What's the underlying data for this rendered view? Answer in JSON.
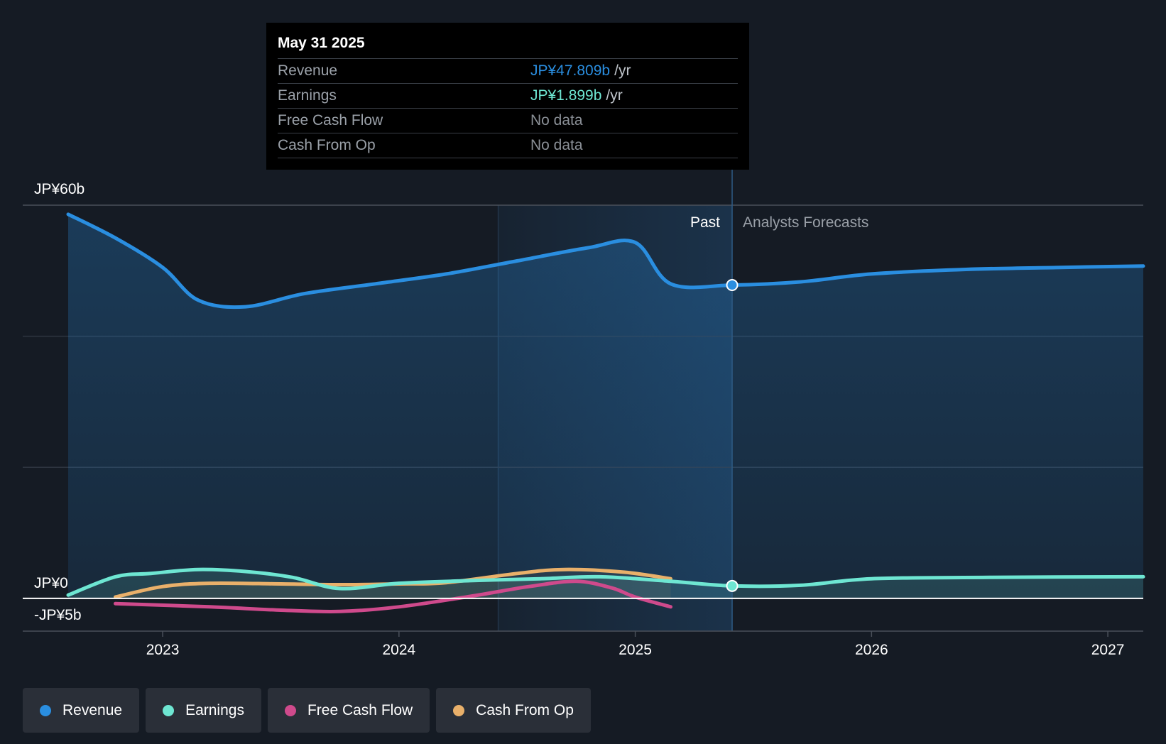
{
  "colors": {
    "background": "#151b24",
    "revenue": "#2a8ee0",
    "earnings": "#6ee6d2",
    "free_cash_flow": "#cf4a8c",
    "cash_from_op": "#e9b06a",
    "past_shade": "#1d3a57",
    "grid": "#3a404a"
  },
  "tooltip": {
    "date": "May 31 2025",
    "rows": [
      {
        "label": "Revenue",
        "value": "JP¥47.809b",
        "unit": "/yr",
        "color": "#2a8ee0"
      },
      {
        "label": "Earnings",
        "value": "JP¥1.899b",
        "unit": "/yr",
        "color": "#6ee6d2"
      },
      {
        "label": "Free Cash Flow",
        "value": "No data",
        "unit": "",
        "color": "#8a8f96"
      },
      {
        "label": "Cash From Op",
        "value": "No data",
        "unit": "",
        "color": "#8a8f96"
      }
    ]
  },
  "legend": [
    {
      "label": "Revenue",
      "color": "#2a8ee0"
    },
    {
      "label": "Earnings",
      "color": "#6ee6d2"
    },
    {
      "label": "Free Cash Flow",
      "color": "#cf4a8c"
    },
    {
      "label": "Cash From Op",
      "color": "#e9b06a"
    }
  ],
  "chart_data": {
    "type": "line",
    "title": "",
    "xlabel": "",
    "ylabel": "",
    "xlim": [
      2022.6,
      2027.15
    ],
    "ylim": [
      -5,
      60
    ],
    "y_tick_labels": [
      {
        "value": 60,
        "label": "JP¥60b"
      },
      {
        "value": 0,
        "label": "JP¥0"
      },
      {
        "value": -5,
        "label": "-JP¥5b"
      }
    ],
    "x_ticks": [
      {
        "value": 2023,
        "label": "2023"
      },
      {
        "value": 2024,
        "label": "2024"
      },
      {
        "value": 2025,
        "label": "2025"
      },
      {
        "value": 2026,
        "label": "2026"
      },
      {
        "value": 2027,
        "label": "2027"
      }
    ],
    "highlight_range": [
      2024.42,
      2025.41
    ],
    "past_forecast_divider": 2025.41,
    "past_label": "Past",
    "forecast_label": "Analysts Forecasts",
    "series": [
      {
        "name": "Revenue",
        "key": "revenue",
        "points": [
          [
            2022.6,
            58.6
          ],
          [
            2022.8,
            55.0
          ],
          [
            2023.0,
            50.5
          ],
          [
            2023.15,
            45.5
          ],
          [
            2023.35,
            44.5
          ],
          [
            2023.6,
            46.5
          ],
          [
            2023.9,
            48.0
          ],
          [
            2024.2,
            49.5
          ],
          [
            2024.5,
            51.5
          ],
          [
            2024.8,
            53.5
          ],
          [
            2025.0,
            54.3
          ],
          [
            2025.15,
            48.0
          ],
          [
            2025.41,
            47.809
          ],
          [
            2025.7,
            48.3
          ],
          [
            2026.0,
            49.5
          ],
          [
            2026.4,
            50.2
          ],
          [
            2026.8,
            50.5
          ],
          [
            2027.15,
            50.7
          ]
        ]
      },
      {
        "name": "Earnings",
        "key": "earnings",
        "points": [
          [
            2022.6,
            0.5
          ],
          [
            2022.8,
            3.3
          ],
          [
            2022.95,
            3.8
          ],
          [
            2023.15,
            4.4
          ],
          [
            2023.35,
            4.1
          ],
          [
            2023.55,
            3.2
          ],
          [
            2023.75,
            1.5
          ],
          [
            2024.0,
            2.3
          ],
          [
            2024.3,
            2.7
          ],
          [
            2024.6,
            3.0
          ],
          [
            2024.85,
            3.3
          ],
          [
            2025.15,
            2.6
          ],
          [
            2025.41,
            1.899
          ],
          [
            2025.7,
            2.0
          ],
          [
            2026.0,
            3.0
          ],
          [
            2026.5,
            3.2
          ],
          [
            2027.15,
            3.3
          ]
        ]
      },
      {
        "name": "Free Cash Flow",
        "key": "free_cash_flow",
        "points": [
          [
            2022.8,
            -0.8
          ],
          [
            2023.2,
            -1.3
          ],
          [
            2023.5,
            -1.8
          ],
          [
            2023.75,
            -2.0
          ],
          [
            2024.0,
            -1.3
          ],
          [
            2024.3,
            0.3
          ],
          [
            2024.55,
            1.8
          ],
          [
            2024.75,
            2.6
          ],
          [
            2024.9,
            1.6
          ],
          [
            2025.0,
            0.2
          ],
          [
            2025.15,
            -1.3
          ]
        ]
      },
      {
        "name": "Cash From Op",
        "key": "cash_from_op",
        "points": [
          [
            2022.8,
            0.2
          ],
          [
            2023.0,
            1.8
          ],
          [
            2023.2,
            2.3
          ],
          [
            2023.5,
            2.2
          ],
          [
            2023.75,
            2.1
          ],
          [
            2024.0,
            2.2
          ],
          [
            2024.2,
            2.4
          ],
          [
            2024.5,
            3.8
          ],
          [
            2024.7,
            4.4
          ],
          [
            2024.95,
            4.0
          ],
          [
            2025.15,
            3.0
          ]
        ]
      }
    ]
  }
}
